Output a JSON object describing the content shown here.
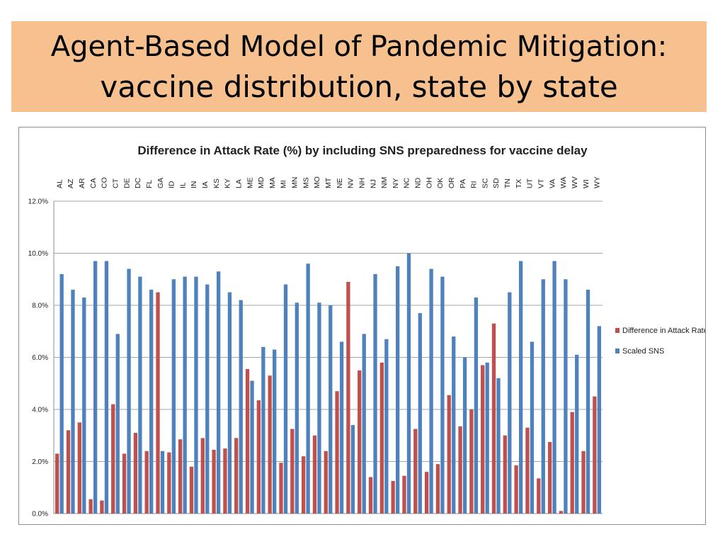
{
  "slide": {
    "title_line1": "Agent-Based Model of Pandemic Mitigation:",
    "title_line2": "vaccine distribution, state by state"
  },
  "chart_data": {
    "type": "bar",
    "title": "Difference in Attack Rate (%) by including SNS preparedness for vaccine delay",
    "xlabel": "",
    "ylabel": "",
    "ylim": [
      0,
      12
    ],
    "yticks": [
      "0.0%",
      "2.0%",
      "4.0%",
      "6.0%",
      "8.0%",
      "10.0%",
      "12.0%"
    ],
    "grid": true,
    "legend_position": "right",
    "categories": [
      "AL",
      "AZ",
      "AR",
      "CA",
      "CO",
      "CT",
      "DE",
      "DC",
      "FL",
      "GA",
      "ID",
      "IL",
      "IN",
      "IA",
      "KS",
      "KY",
      "LA",
      "ME",
      "MD",
      "MA",
      "MI",
      "MN",
      "MS",
      "MO",
      "MT",
      "NE",
      "NV",
      "NH",
      "NJ",
      "NM",
      "NY",
      "NC",
      "ND",
      "OH",
      "OK",
      "OR",
      "PA",
      "RI",
      "SC",
      "SD",
      "TN",
      "TX",
      "UT",
      "VT",
      "VA",
      "WA",
      "WV",
      "WI",
      "WY"
    ],
    "series": [
      {
        "name": "Difference in Attack Rate",
        "color": "#c0504d",
        "values": [
          2.3,
          3.2,
          3.5,
          0.55,
          0.5,
          4.2,
          2.3,
          3.1,
          2.4,
          8.5,
          2.35,
          2.85,
          1.8,
          2.9,
          2.45,
          2.5,
          2.9,
          5.55,
          4.35,
          5.3,
          1.95,
          3.25,
          2.2,
          3.0,
          2.4,
          4.7,
          8.9,
          5.5,
          1.4,
          5.8,
          1.25,
          1.45,
          3.25,
          1.6,
          1.9,
          4.55,
          3.35,
          4.0,
          5.7,
          7.3,
          3.0,
          1.85,
          3.3,
          1.35,
          2.75,
          0.1,
          3.9,
          2.4,
          4.5
        ]
      },
      {
        "name": "Scaled SNS",
        "color": "#4f81bd",
        "values": [
          9.2,
          8.6,
          8.3,
          9.7,
          9.7,
          6.9,
          9.4,
          9.1,
          8.6,
          2.4,
          9.0,
          9.1,
          9.1,
          8.8,
          9.3,
          8.5,
          8.2,
          5.1,
          6.4,
          6.3,
          8.8,
          8.1,
          9.6,
          8.1,
          8.0,
          6.6,
          3.4,
          6.9,
          9.2,
          6.7,
          9.5,
          10.0,
          7.7,
          9.4,
          9.1,
          6.8,
          6.0,
          8.3,
          5.8,
          5.2,
          8.5,
          9.7,
          6.6,
          9.0,
          9.7,
          9.0,
          6.1,
          8.6,
          7.2
        ]
      }
    ]
  }
}
